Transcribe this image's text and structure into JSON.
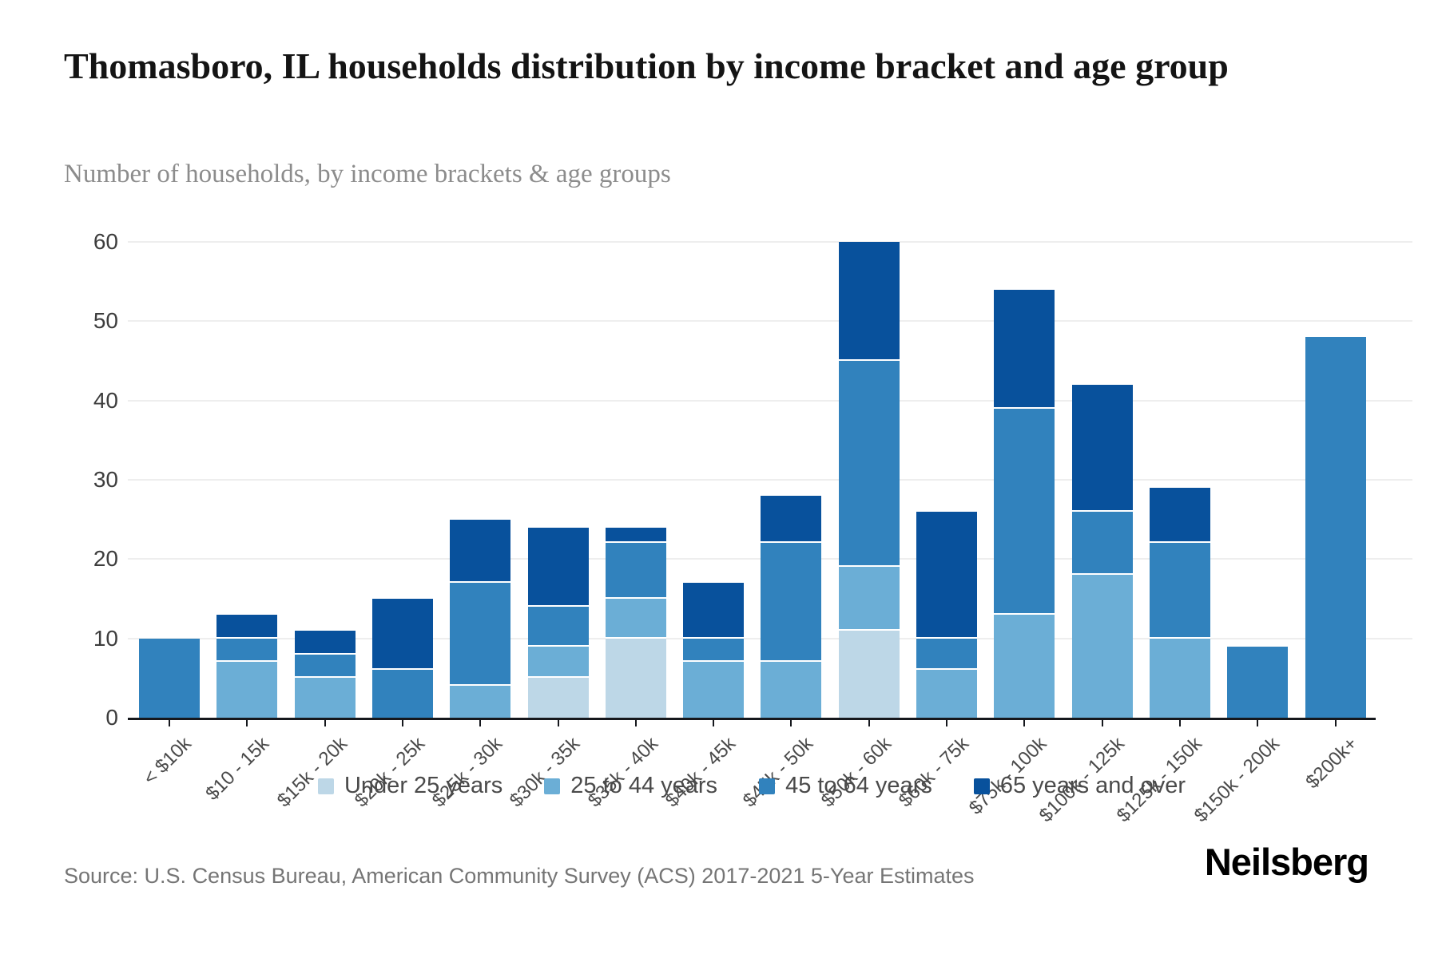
{
  "page": {
    "title": "Thomasboro, IL households distribution by income bracket and age group",
    "subtitle": "Number of households, by income brackets & age groups",
    "source": "Source: U.S. Census Bureau, American Community Survey (ACS) 2017-2021 5-Year Estimates",
    "brand": "Neilsberg"
  },
  "chart_data": {
    "type": "bar",
    "stacked": true,
    "title": "Thomasboro, IL households distribution by income bracket and age group",
    "subtitle": "Number of households, by income brackets & age groups",
    "categories": [
      "< $10k",
      "$10 - 15k",
      "$15k - 20k",
      "$20k - 25k",
      "$25k - 30k",
      "$30k - 35k",
      "$35k - 40k",
      "$40k - 45k",
      "$45k - 50k",
      "$50k - 60k",
      "$60k - 75k",
      "$75k - 100k",
      "$100k - 125k",
      "$125k - 150k",
      "$150k - 200k",
      "$200k+"
    ],
    "series": [
      {
        "name": "Under 25 years",
        "color": "#bdd7e7",
        "values": [
          0,
          0,
          0,
          0,
          0,
          5,
          10,
          0,
          0,
          11,
          0,
          0,
          0,
          0,
          0,
          0
        ]
      },
      {
        "name": "25 to 44 years",
        "color": "#6baed6",
        "values": [
          0,
          7,
          5,
          0,
          4,
          4,
          5,
          7,
          7,
          8,
          6,
          13,
          18,
          10,
          0,
          0
        ]
      },
      {
        "name": "45 to 64 years",
        "color": "#3182bd",
        "values": [
          10,
          3,
          3,
          6,
          13,
          5,
          7,
          3,
          15,
          26,
          4,
          26,
          8,
          12,
          9,
          48
        ]
      },
      {
        "name": "65 years and over",
        "color": "#08519c",
        "values": [
          0,
          3,
          3,
          9,
          8,
          10,
          2,
          7,
          6,
          15,
          16,
          15,
          16,
          7,
          0,
          0
        ]
      }
    ],
    "totals": [
      10,
      13,
      11,
      15,
      25,
      24,
      24,
      17,
      28,
      60,
      26,
      54,
      42,
      29,
      9,
      48
    ],
    "xlabel": "",
    "ylabel": "",
    "ylim": [
      0,
      60
    ],
    "yticks": [
      0,
      10,
      20,
      30,
      40,
      50,
      60
    ],
    "grid": true,
    "legend_position": "bottom"
  },
  "colors": {
    "background": "#ffffff",
    "gridline": "#eeeeee",
    "axis": "#16181d",
    "title_text": "#141414",
    "subtitle_text": "#8c8c8c",
    "tick_text": "#3d3d3d",
    "legend_text": "#4a4a4a",
    "source_text": "#757575"
  }
}
